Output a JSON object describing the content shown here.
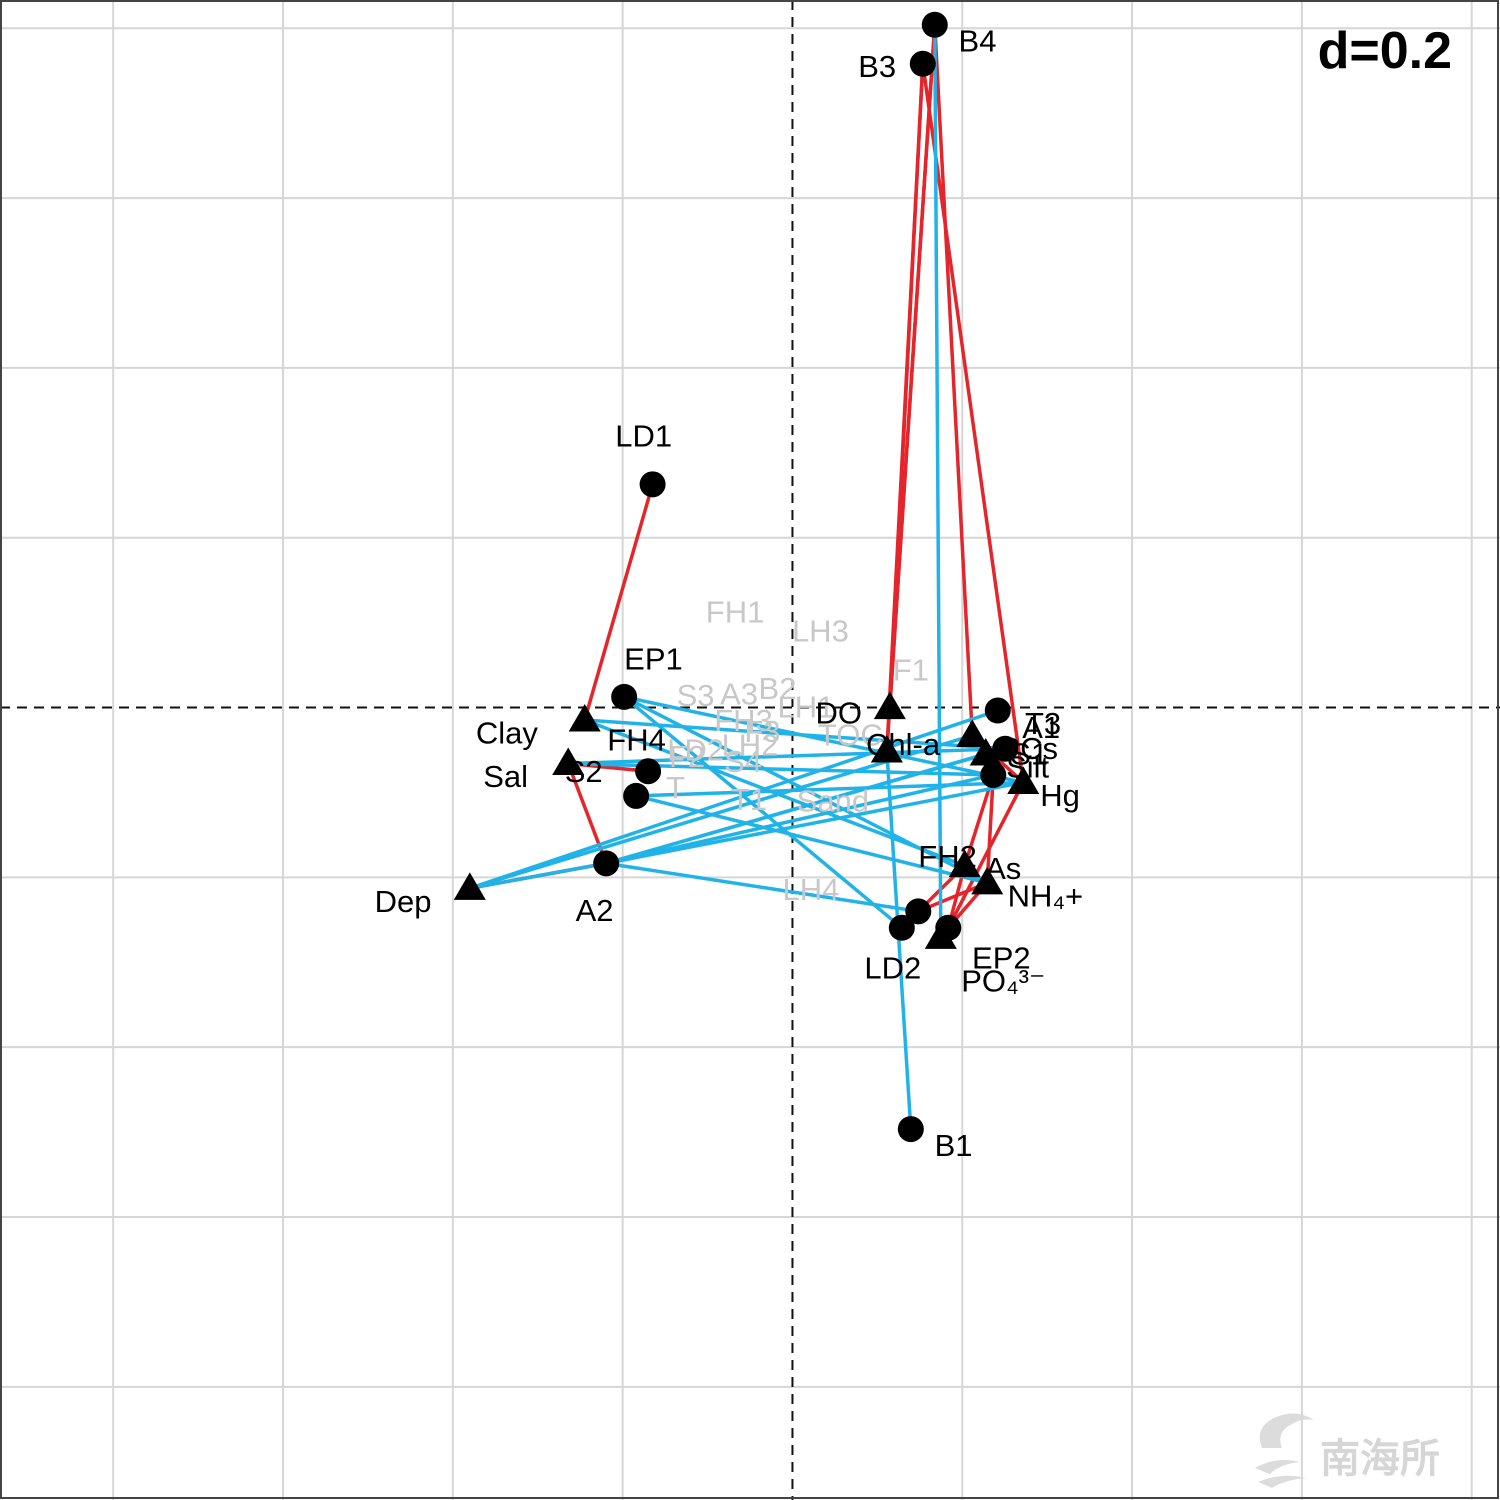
{
  "chart_data": {
    "type": "scatter",
    "title": "",
    "scale_label": "d=0.2",
    "xlim": [
      -0.9333,
      0.8333
    ],
    "ylim": [
      -0.9333,
      0.8333
    ],
    "grid_step": 0.2,
    "grid": true,
    "colors": {
      "red": "#e4252b",
      "blue": "#21b3e8",
      "grid": "#d6d6d6",
      "faint": "#c8c8c8"
    },
    "points": [
      {
        "id": "B4",
        "label": "B4",
        "shape": "circle",
        "x": 0.1676,
        "y": 0.8041,
        "lx": 0.7,
        "ly": 0.6
      },
      {
        "id": "B3",
        "label": "B3",
        "shape": "circle",
        "x": 0.1535,
        "y": 0.7582,
        "lx": -1.9,
        "ly": 0.2
      },
      {
        "id": "LD1",
        "label": "LD1",
        "shape": "circle",
        "x": -0.1647,
        "y": 0.2629,
        "lx": -1.1,
        "ly": -1.3
      },
      {
        "id": "EP1",
        "label": "EP1",
        "shape": "circle",
        "x": -0.1982,
        "y": 0.0126,
        "lx": 0.0,
        "ly": -1.0
      },
      {
        "id": "T3",
        "label": "T3",
        "shape": "circle",
        "x": 0.2418,
        "y": -0.0035,
        "lx": 0.8,
        "ly": 0.5
      },
      {
        "id": "A1",
        "label": "A1",
        "shape": "circle",
        "x": 0.2506,
        "y": -0.0485,
        "lx": 0.5,
        "ly": -0.5
      },
      {
        "id": "S1",
        "label": "S1",
        "shape": "circle",
        "x": 0.2365,
        "y": -0.0794,
        "lx": 0.5,
        "ly": -0.5
      },
      {
        "id": "FH4",
        "label": "FH4",
        "shape": "circle",
        "x": -0.17,
        "y": -0.075,
        "lx": -1.2,
        "ly": -0.8
      },
      {
        "id": "S2",
        "label": "S2",
        "shape": "circle",
        "x": -0.1841,
        "y": -0.1041,
        "lx": -2.1,
        "ly": -0.6
      },
      {
        "id": "A2",
        "label": "A2",
        "shape": "circle",
        "x": -0.2194,
        "y": -0.1835,
        "lx": -0.9,
        "ly": 1.5
      },
      {
        "id": "FH2",
        "label": "FH2",
        "shape": "circle",
        "x": 0.1482,
        "y": -0.24,
        "lx": 0.0,
        "ly": -1.5
      },
      {
        "id": "LD2",
        "label": "LD2",
        "shape": "circle",
        "x": 0.1288,
        "y": -0.2594,
        "lx": -1.1,
        "ly": 1.3
      },
      {
        "id": "EP2",
        "label": "EP2",
        "shape": "circle",
        "x": 0.1835,
        "y": -0.2594,
        "lx": 0.7,
        "ly": 1.0
      },
      {
        "id": "B1",
        "label": "B1",
        "shape": "circle",
        "x": 0.1394,
        "y": -0.4965,
        "lx": 0.7,
        "ly": 0.6
      },
      {
        "id": "DO",
        "label": "DO",
        "shape": "triangle",
        "x": 0.1112,
        "y": -0.0512,
        "lx": -2.1,
        "ly": -1.0
      },
      {
        "id": "Chl-a",
        "label": "Chl-a",
        "shape": "triangle",
        "x": 0.1147,
        "y": 0.0,
        "lx": -0.7,
        "ly": 1.2
      },
      {
        "id": "PCs",
        "label": "PCs",
        "shape": "triangle",
        "x": 0.2118,
        "y": -0.0329,
        "lx": 0.8,
        "ly": 0.5
      },
      {
        "id": "Clay",
        "label": "Clay",
        "shape": "triangle",
        "x": -0.2447,
        "y": -0.0147,
        "lx": -3.2,
        "ly": 0.5
      },
      {
        "id": "Silt",
        "label": "Silt",
        "shape": "triangle",
        "x": 0.2276,
        "y": -0.0547,
        "lx": 0.6,
        "ly": 0.5
      },
      {
        "id": "Sal",
        "label": "Sal",
        "shape": "triangle",
        "x": -0.2641,
        "y": -0.0659,
        "lx": -2.5,
        "ly": 0.5
      },
      {
        "id": "Hg",
        "label": "Hg",
        "shape": "triangle",
        "x": 0.2718,
        "y": -0.0882,
        "lx": 0.5,
        "ly": 0.5
      },
      {
        "id": "Dep",
        "label": "Dep",
        "shape": "triangle",
        "x": -0.38,
        "y": -0.2129,
        "lx": -2.8,
        "ly": 0.5
      },
      {
        "id": "As",
        "label": "As",
        "shape": "triangle",
        "x": 0.2029,
        "y": -0.1862,
        "lx": 0.6,
        "ly": 0.2
      },
      {
        "id": "NH4+",
        "label": "NH₄+",
        "shape": "triangle",
        "x": 0.2294,
        "y": -0.2065,
        "lx": 0.6,
        "ly": 0.5
      },
      {
        "id": "PO43-",
        "label": "PO₄³⁻",
        "shape": "triangle",
        "x": 0.1747,
        "y": -0.2706,
        "lx": 0.6,
        "ly": 1.4
      }
    ],
    "faint_labels": [
      {
        "label": "FH1",
        "x": -0.0676,
        "y": 0.1124
      },
      {
        "label": "LH3",
        "x": 0.0329,
        "y": 0.09
      },
      {
        "label": "F1",
        "x": 0.1394,
        "y": 0.0441
      },
      {
        "label": "S3",
        "x": -0.1141,
        "y": 0.0141
      },
      {
        "label": "A3",
        "x": -0.0629,
        "y": 0.0159
      },
      {
        "label": "B2",
        "x": -0.0176,
        "y": 0.0224
      },
      {
        "label": "LH1",
        "x": 0.0159,
        "y": 0.0006
      },
      {
        "label": "FH3",
        "x": -0.0576,
        "y": -0.0153
      },
      {
        "label": "F3",
        "x": -0.0353,
        "y": -0.0282
      },
      {
        "label": "TOC",
        "x": 0.0682,
        "y": -0.0324
      },
      {
        "label": "LH2",
        "x": -0.05,
        "y": -0.0441
      },
      {
        "label": "F2",
        "x": -0.1241,
        "y": -0.0576
      },
      {
        "label": "LD2",
        "x": -0.1141,
        "y": -0.05
      },
      {
        "label": "S4",
        "x": -0.0582,
        "y": -0.0635
      },
      {
        "label": "T",
        "x": -0.1376,
        "y": -0.0941
      },
      {
        "label": "T1",
        "x": -0.0512,
        "y": -0.1082
      },
      {
        "label": "Sand",
        "x": 0.0476,
        "y": -0.11
      },
      {
        "label": "LH4",
        "x": 0.0218,
        "y": -0.2141
      }
    ],
    "links": [
      [
        "B4",
        "DO",
        "red"
      ],
      [
        "B4",
        "Chl-a",
        "red"
      ],
      [
        "B3",
        "DO",
        "red"
      ],
      [
        "B3",
        "Chl-a",
        "red"
      ],
      [
        "B4",
        "PCs",
        "red"
      ],
      [
        "B3",
        "Hg",
        "red"
      ],
      [
        "PCs",
        "Hg",
        "red"
      ],
      [
        "LD1",
        "Clay",
        "red"
      ],
      [
        "FH4",
        "Sal",
        "red"
      ],
      [
        "Sal",
        "A2",
        "red"
      ],
      [
        "A2",
        "Dep",
        "red"
      ],
      [
        "S1",
        "As",
        "red"
      ],
      [
        "S1",
        "NH4+",
        "red"
      ],
      [
        "Hg",
        "EP2",
        "red"
      ],
      [
        "FH2",
        "As",
        "red"
      ],
      [
        "FH2",
        "NH4+",
        "red"
      ],
      [
        "EP2",
        "NH4+",
        "red"
      ],
      [
        "EP2",
        "As",
        "red"
      ],
      [
        "DO",
        "B1",
        "blue"
      ],
      [
        "B4",
        "PO43-",
        "blue"
      ],
      [
        "EP1",
        "Hg",
        "blue"
      ],
      [
        "EP1",
        "NH4+",
        "blue"
      ],
      [
        "EP1",
        "LD2",
        "blue"
      ],
      [
        "Clay",
        "A1",
        "blue"
      ],
      [
        "Clay",
        "As",
        "blue"
      ],
      [
        "T3",
        "Dep",
        "blue"
      ],
      [
        "PCs",
        "Dep",
        "blue"
      ],
      [
        "A1",
        "Sal",
        "blue"
      ],
      [
        "A1",
        "A2",
        "blue"
      ],
      [
        "S1",
        "Sal",
        "blue"
      ],
      [
        "S1",
        "A2",
        "blue"
      ],
      [
        "Silt",
        "A2",
        "blue"
      ],
      [
        "Hg",
        "A2",
        "blue"
      ],
      [
        "Hg",
        "S2",
        "blue"
      ],
      [
        "S2",
        "NH4+",
        "blue"
      ],
      [
        "A2",
        "FH2",
        "blue"
      ],
      [
        "Dep",
        "A2",
        "blue"
      ]
    ]
  },
  "watermark": {
    "text": "南海所"
  }
}
